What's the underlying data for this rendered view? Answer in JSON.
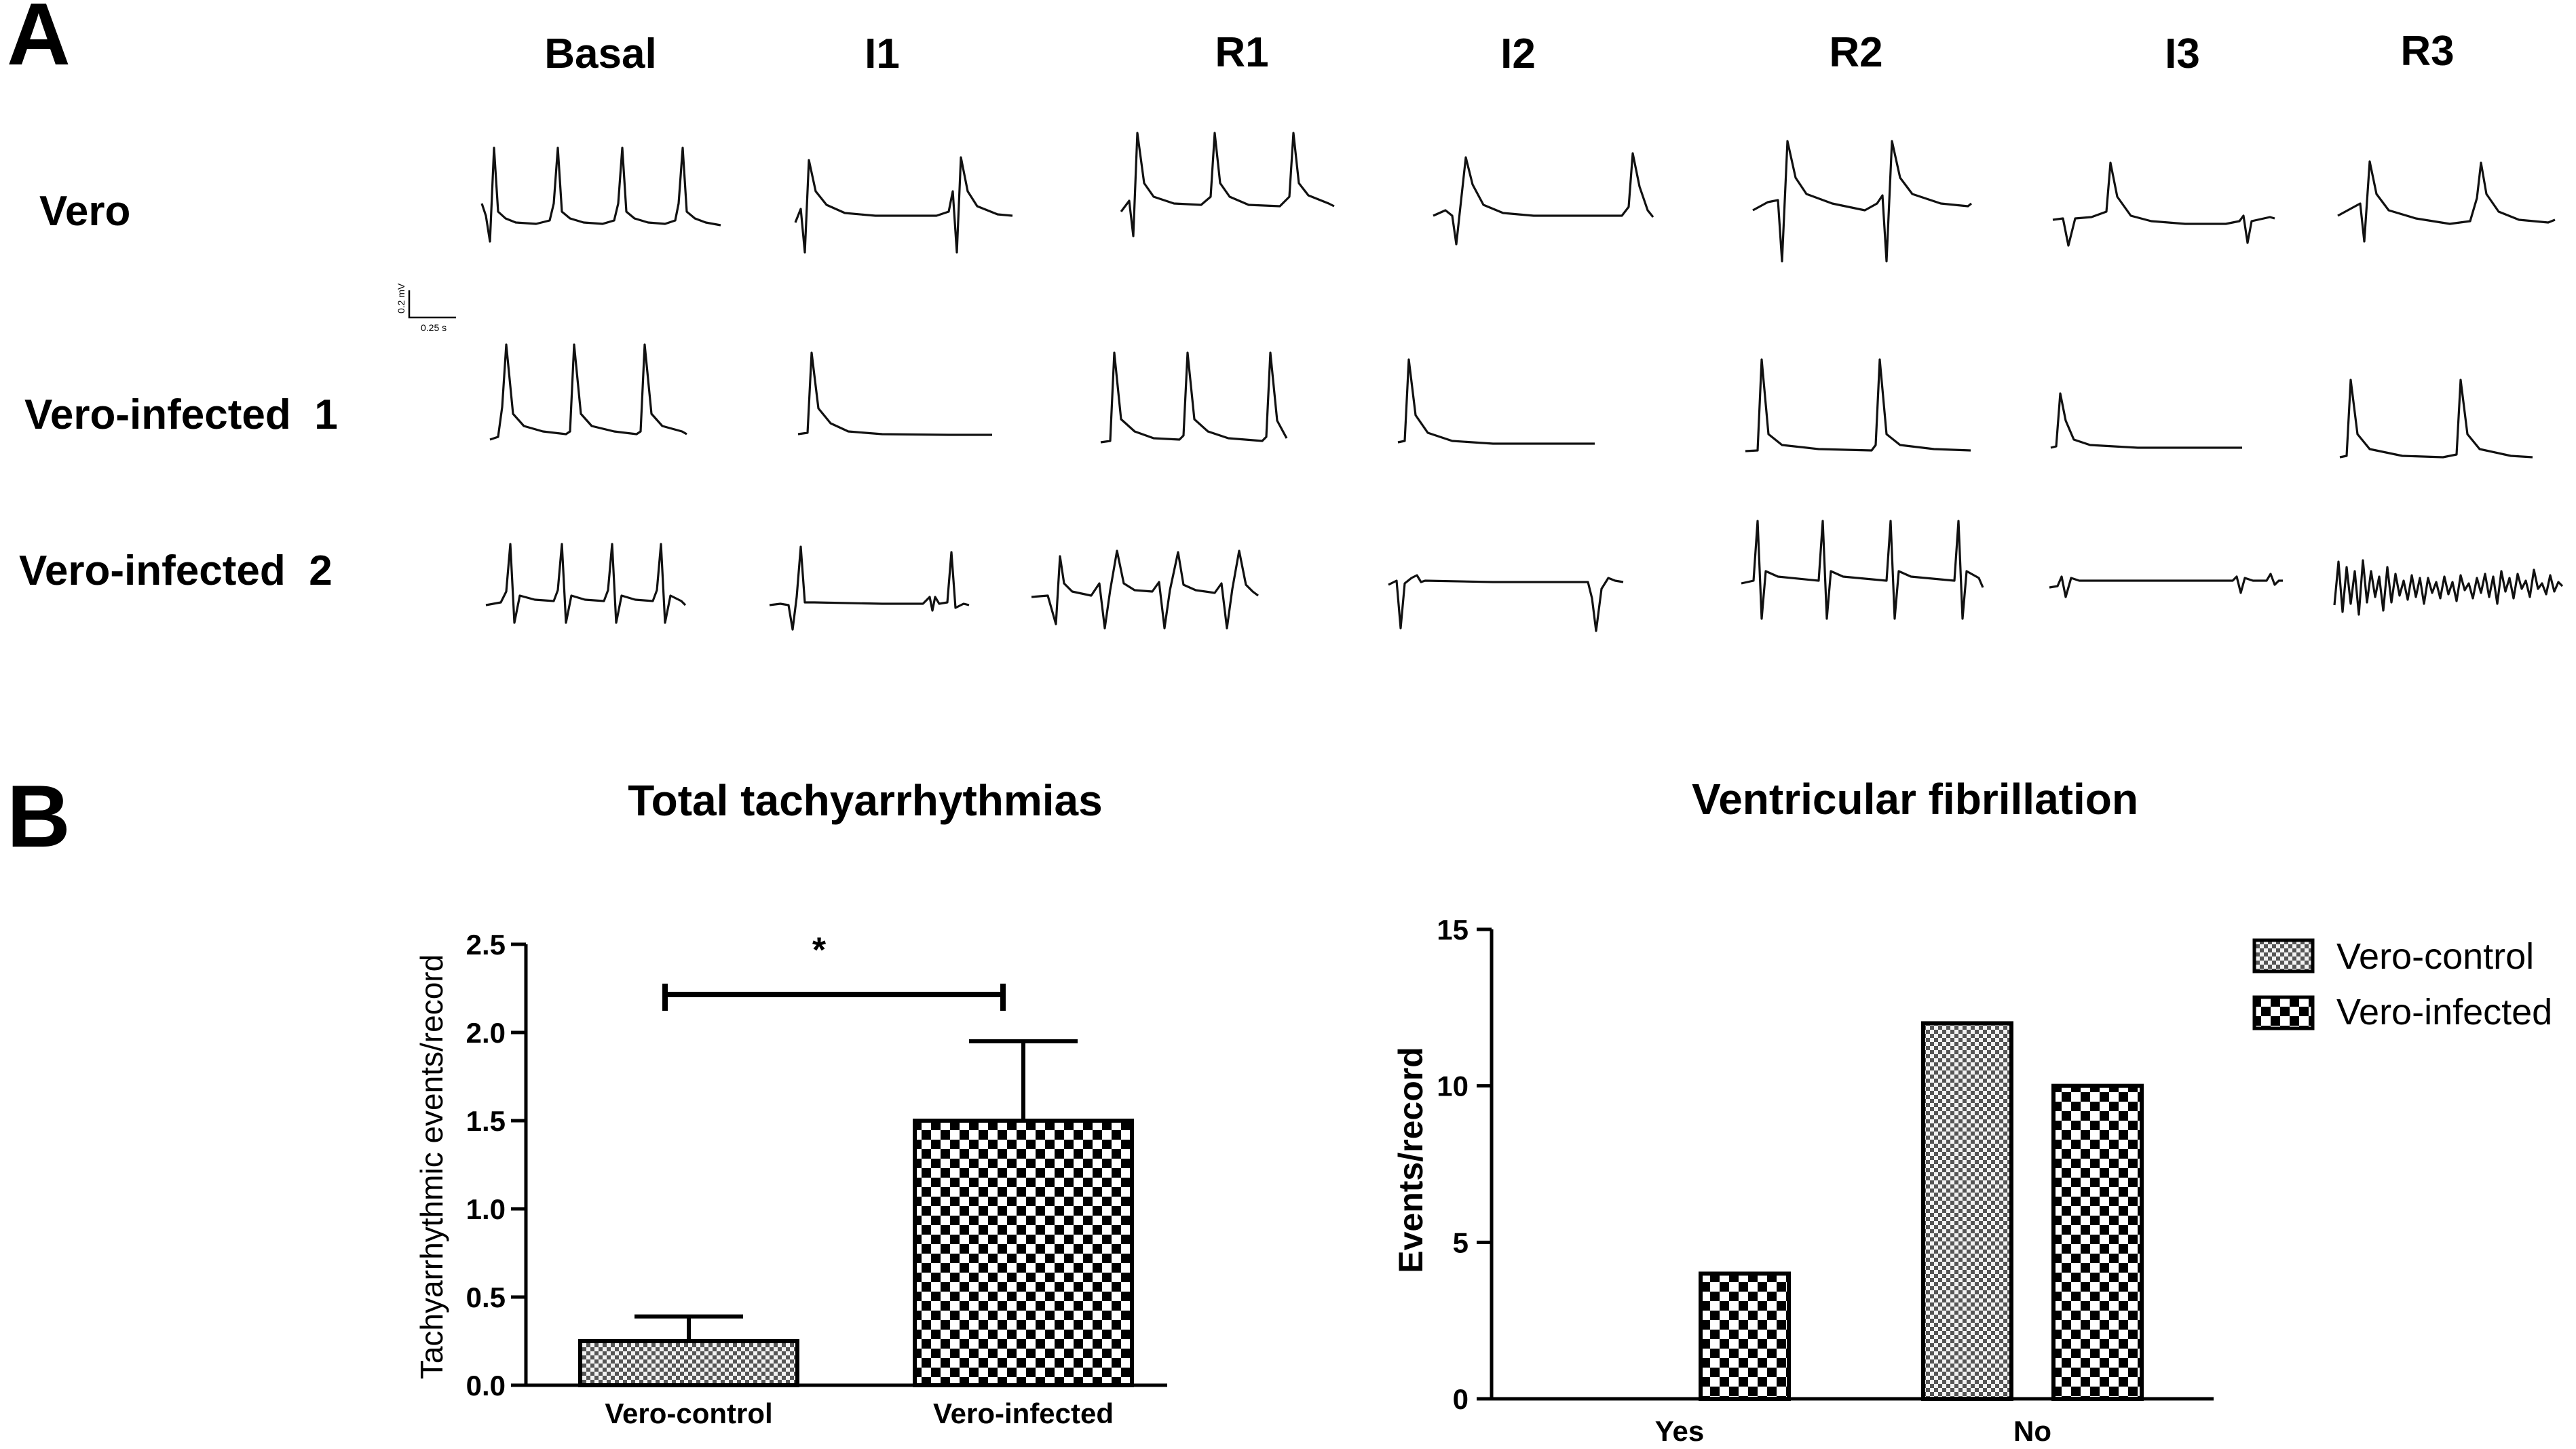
{
  "panel_a": {
    "letter": "A",
    "columns": [
      "Basal",
      "I1",
      "R1",
      "I2",
      "R2",
      "I3",
      "R3"
    ],
    "rows": [
      "Vero",
      "Vero-infected  1",
      "Vero-infected  2"
    ],
    "scale_bar": {
      "voltage": "0.2 mV",
      "time": "0.25 s"
    }
  },
  "panel_b": {
    "letter": "B"
  },
  "chart_data": [
    {
      "type": "bar",
      "title": "Total tachyarrhythmias",
      "xlabel": "",
      "ylabel": "Tachyarrhythmic events/record",
      "categories": [
        "Vero-control",
        "Vero-infected"
      ],
      "values": [
        0.25,
        1.5
      ],
      "errors": [
        0.14,
        0.45
      ],
      "ylim": [
        0,
        2.5
      ],
      "yticks": [
        "0.0",
        "0.5",
        "1.0",
        "1.5",
        "2.0",
        "2.5"
      ],
      "annotation": "*",
      "patterns": [
        "fine-check",
        "coarse-check"
      ]
    },
    {
      "type": "bar",
      "title": "Ventricular fibrillation",
      "xlabel": "",
      "ylabel": "Events/record",
      "categories": [
        "Yes",
        "No"
      ],
      "series": [
        {
          "name": "Vero-control",
          "values": [
            0,
            12
          ]
        },
        {
          "name": "Vero-infected",
          "values": [
            4,
            10
          ]
        }
      ],
      "ylim": [
        0,
        15
      ],
      "yticks": [
        "0",
        "5",
        "10",
        "15"
      ],
      "legend_position": "top-right"
    }
  ]
}
